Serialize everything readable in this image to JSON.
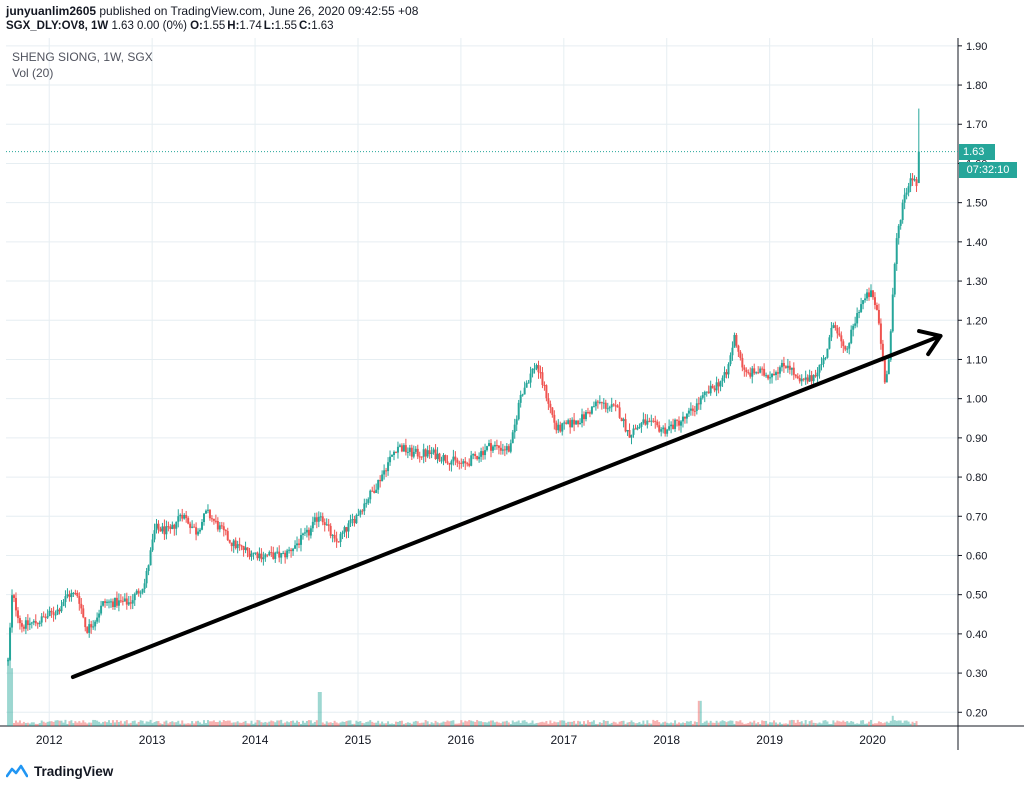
{
  "header": {
    "author": "junyuanlim2605",
    "published_text": " published on TradingView.com, June 26, 2020 09:42:55 +08",
    "symbol": "SGX_DLY:OV8, 1W",
    "quote": " 1.63 0.00 (0%) ",
    "ohlc": [
      {
        "key": "O:",
        "value": "1.55"
      },
      {
        "key": "H:",
        "value": "1.74"
      },
      {
        "key": "L:",
        "value": "1.55"
      },
      {
        "key": "C:",
        "value": "1.63"
      }
    ]
  },
  "legend": {
    "title": "SHENG SIONG, 1W, SGX",
    "indicator": "Vol (20)"
  },
  "last_price_tag": "1.63",
  "countdown_tag": "07:32:10",
  "brand": {
    "name": "TradingView",
    "icon": "tradingview-logo-icon"
  },
  "colors": {
    "up": "#26a69a",
    "down": "#ef5350",
    "grid": "#e6eef2",
    "trend_arrow": "#000000",
    "price_line": "#26a69a"
  },
  "chart_data": {
    "type": "candlestick",
    "interval": "1W",
    "ylim": [
      0.165,
      1.92
    ],
    "xlim": [
      2011.6,
      2020.85
    ],
    "y_ticks": [
      "0.20",
      "0.30",
      "0.40",
      "0.50",
      "0.60",
      "0.70",
      "0.80",
      "0.90",
      "1.00",
      "1.10",
      "1.20",
      "1.30",
      "1.40",
      "1.50",
      "1.60",
      "1.70",
      "1.80",
      "1.90"
    ],
    "x_ticks": [
      "2012",
      "2013",
      "2014",
      "2015",
      "2016",
      "2017",
      "2018",
      "2019",
      "2020"
    ],
    "grid": true,
    "last_price": 1.63,
    "key_points": [
      {
        "x": 2011.62,
        "y": 0.33
      },
      {
        "x": 2011.66,
        "y": 0.5
      },
      {
        "x": 2011.75,
        "y": 0.42
      },
      {
        "x": 2011.9,
        "y": 0.43
      },
      {
        "x": 2012.1,
        "y": 0.46
      },
      {
        "x": 2012.2,
        "y": 0.5
      },
      {
        "x": 2012.3,
        "y": 0.5
      },
      {
        "x": 2012.38,
        "y": 0.41
      },
      {
        "x": 2012.45,
        "y": 0.43
      },
      {
        "x": 2012.55,
        "y": 0.48
      },
      {
        "x": 2012.8,
        "y": 0.48
      },
      {
        "x": 2012.95,
        "y": 0.53
      },
      {
        "x": 2013.05,
        "y": 0.67
      },
      {
        "x": 2013.2,
        "y": 0.66
      },
      {
        "x": 2013.3,
        "y": 0.71
      },
      {
        "x": 2013.45,
        "y": 0.66
      },
      {
        "x": 2013.55,
        "y": 0.71
      },
      {
        "x": 2013.8,
        "y": 0.63
      },
      {
        "x": 2013.95,
        "y": 0.61
      },
      {
        "x": 2014.1,
        "y": 0.6
      },
      {
        "x": 2014.3,
        "y": 0.6
      },
      {
        "x": 2014.55,
        "y": 0.66
      },
      {
        "x": 2014.65,
        "y": 0.71
      },
      {
        "x": 2014.8,
        "y": 0.63
      },
      {
        "x": 2015.0,
        "y": 0.7
      },
      {
        "x": 2015.2,
        "y": 0.78
      },
      {
        "x": 2015.4,
        "y": 0.88
      },
      {
        "x": 2015.55,
        "y": 0.86
      },
      {
        "x": 2015.75,
        "y": 0.86
      },
      {
        "x": 2016.05,
        "y": 0.83
      },
      {
        "x": 2016.3,
        "y": 0.88
      },
      {
        "x": 2016.5,
        "y": 0.87
      },
      {
        "x": 2016.6,
        "y": 1.01
      },
      {
        "x": 2016.75,
        "y": 1.09
      },
      {
        "x": 2016.85,
        "y": 1.01
      },
      {
        "x": 2016.95,
        "y": 0.92
      },
      {
        "x": 2017.2,
        "y": 0.95
      },
      {
        "x": 2017.35,
        "y": 0.99
      },
      {
        "x": 2017.55,
        "y": 0.97
      },
      {
        "x": 2017.65,
        "y": 0.91
      },
      {
        "x": 2017.8,
        "y": 0.94
      },
      {
        "x": 2018.0,
        "y": 0.92
      },
      {
        "x": 2018.2,
        "y": 0.95
      },
      {
        "x": 2018.4,
        "y": 1.01
      },
      {
        "x": 2018.6,
        "y": 1.06
      },
      {
        "x": 2018.68,
        "y": 1.16
      },
      {
        "x": 2018.78,
        "y": 1.06
      },
      {
        "x": 2018.9,
        "y": 1.07
      },
      {
        "x": 2019.0,
        "y": 1.06
      },
      {
        "x": 2019.2,
        "y": 1.09
      },
      {
        "x": 2019.3,
        "y": 1.04
      },
      {
        "x": 2019.42,
        "y": 1.05
      },
      {
        "x": 2019.55,
        "y": 1.1
      },
      {
        "x": 2019.65,
        "y": 1.2
      },
      {
        "x": 2019.75,
        "y": 1.11
      },
      {
        "x": 2019.9,
        "y": 1.24
      },
      {
        "x": 2020.0,
        "y": 1.27
      },
      {
        "x": 2020.07,
        "y": 1.22
      },
      {
        "x": 2020.14,
        "y": 1.05
      },
      {
        "x": 2020.18,
        "y": 1.1
      },
      {
        "x": 2020.25,
        "y": 1.4
      },
      {
        "x": 2020.32,
        "y": 1.51
      },
      {
        "x": 2020.4,
        "y": 1.57
      },
      {
        "x": 2020.45,
        "y": 1.55
      }
    ],
    "final_candle": {
      "open": 1.55,
      "high": 1.74,
      "low": 1.55,
      "close": 1.63
    },
    "volume_spikes": [
      {
        "x": 2011.63,
        "v": 1.0
      },
      {
        "x": 2011.66,
        "v": 0.85
      },
      {
        "x": 2014.65,
        "v": 0.5
      },
      {
        "x": 2018.34,
        "v": 0.37
      },
      {
        "x": 2020.22,
        "v": 0.15
      }
    ],
    "trend_arrow": {
      "from": {
        "x": 2012.25,
        "y": 0.29
      },
      "to": {
        "x": 2020.68,
        "y": 1.16
      }
    }
  }
}
